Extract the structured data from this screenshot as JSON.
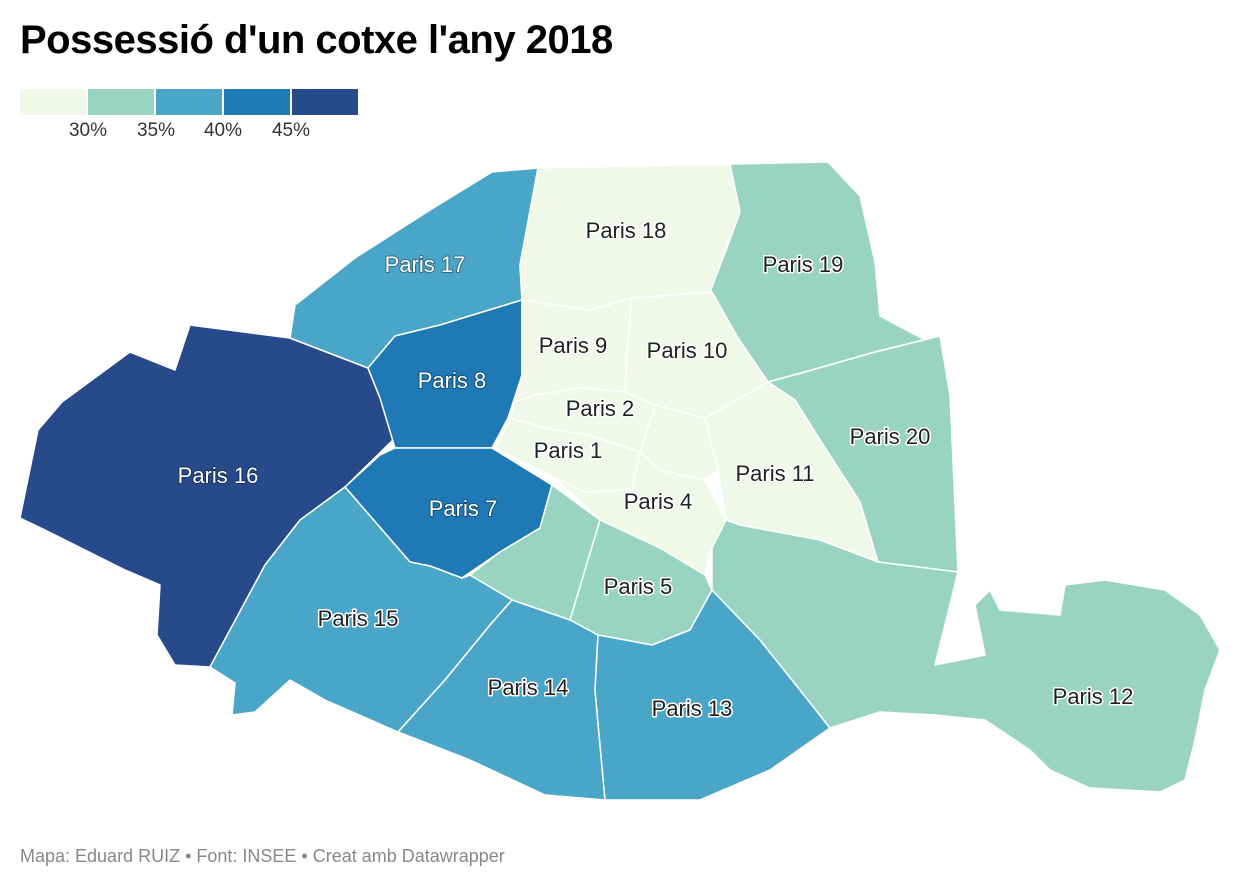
{
  "title": "Possessió d'un cotxe l'any 2018",
  "legend": {
    "colors": [
      "#f0f9e8",
      "#98d4c1",
      "#4aa6c8",
      "#1f79b5",
      "#264a8a"
    ],
    "ticks": [
      "30%",
      "35%",
      "40%",
      "45%"
    ]
  },
  "source": "Mapa: Eduard RUIZ • Font: INSEE • Creat amb Datawrapper",
  "map_data": {
    "type": "choropleth",
    "regions": [
      {
        "name": "Paris 1",
        "label": "Paris 1",
        "bin": 0
      },
      {
        "name": "Paris 2",
        "label": "Paris 2",
        "bin": 0
      },
      {
        "name": "Paris 3",
        "label": "",
        "bin": 0
      },
      {
        "name": "Paris 4",
        "label": "Paris 4",
        "bin": 0
      },
      {
        "name": "Paris 5",
        "label": "Paris 5",
        "bin": 1
      },
      {
        "name": "Paris 6",
        "label": "",
        "bin": 1
      },
      {
        "name": "Paris 7",
        "label": "Paris 7",
        "bin": 3
      },
      {
        "name": "Paris 8",
        "label": "Paris 8",
        "bin": 3
      },
      {
        "name": "Paris 9",
        "label": "Paris 9",
        "bin": 0
      },
      {
        "name": "Paris 10",
        "label": "Paris 10",
        "bin": 0
      },
      {
        "name": "Paris 11",
        "label": "Paris 11",
        "bin": 0
      },
      {
        "name": "Paris 12",
        "label": "Paris 12",
        "bin": 1
      },
      {
        "name": "Paris 13",
        "label": "Paris 13",
        "bin": 2
      },
      {
        "name": "Paris 14",
        "label": "Paris 14",
        "bin": 2
      },
      {
        "name": "Paris 15",
        "label": "Paris 15",
        "bin": 2
      },
      {
        "name": "Paris 16",
        "label": "Paris 16",
        "bin": 4
      },
      {
        "name": "Paris 17",
        "label": "Paris 17",
        "bin": 2
      },
      {
        "name": "Paris 18",
        "label": "Paris 18",
        "bin": 0
      },
      {
        "name": "Paris 19",
        "label": "Paris 19",
        "bin": 1
      },
      {
        "name": "Paris 20",
        "label": "Paris 20",
        "bin": 1
      }
    ]
  }
}
